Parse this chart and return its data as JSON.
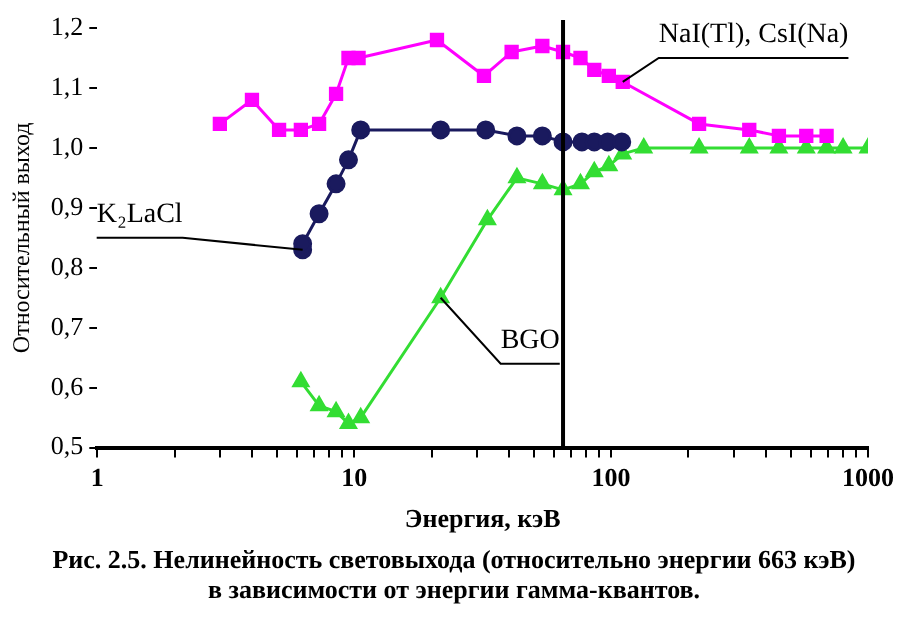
{
  "chart_data": {
    "type": "line",
    "xlabel": "Энергия, кэВ",
    "ylabel": "Относительный выход",
    "annotations": [
      "Рис. 2.5. Нелинейность световыхода (относительно энергии 663 кэВ)\nв зависимости от энергии гамма-квантов."
    ],
    "log": "x",
    "xlim": [
      1,
      1000
    ],
    "ylim": [
      0.5,
      1.2
    ],
    "xticks": [
      1,
      {
        "value": 2,
        "label": null
      },
      {
        "value": 3,
        "label": null
      },
      {
        "value": 4,
        "label": null
      },
      {
        "value": 5,
        "label": null
      },
      {
        "value": 6,
        "label": null
      },
      {
        "value": 7,
        "label": null
      },
      {
        "value": 8,
        "label": null
      },
      {
        "value": 9,
        "label": null
      },
      10,
      {
        "value": 20,
        "label": null
      },
      {
        "value": 30,
        "label": null
      },
      {
        "value": 40,
        "label": null
      },
      {
        "value": 50,
        "label": null
      },
      {
        "value": 60,
        "label": null
      },
      {
        "value": 70,
        "label": null
      },
      {
        "value": 80,
        "label": null
      },
      {
        "value": 90,
        "label": null
      },
      100,
      {
        "value": 200,
        "label": null
      },
      {
        "value": 300,
        "label": null
      },
      {
        "value": 400,
        "label": null
      },
      {
        "value": 500,
        "label": null
      },
      {
        "value": 600,
        "label": null
      },
      {
        "value": 700,
        "label": null
      },
      {
        "value": 800,
        "label": null
      },
      {
        "value": 900,
        "label": null
      },
      1000
    ],
    "yticks": [
      {
        "value": 0.5,
        "label": "0,5"
      },
      {
        "value": 0.6,
        "label": "0,6"
      },
      {
        "value": 0.7,
        "label": "0,7"
      },
      {
        "value": 0.8,
        "label": "0,8"
      },
      {
        "value": 0.9,
        "label": "0,9"
      },
      {
        "value": 1.0,
        "label": "1,0"
      },
      {
        "value": 1.1,
        "label": "1,1"
      },
      {
        "value": 1.2,
        "label": "1,2"
      }
    ],
    "grid": false,
    "legend": false,
    "ref_lines": [
      {
        "axis": "x",
        "value": 65,
        "color": "#000000"
      }
    ],
    "series": [
      {
        "name": "NaI(Tl), CsI(Na)",
        "color": "#ff00ff",
        "marker": "square",
        "x": [
          3,
          4,
          5.1,
          6.2,
          7.3,
          8.5,
          9.5,
          10.4,
          21,
          32,
          41,
          54,
          65,
          76,
          86,
          98,
          111,
          220,
          345,
          450,
          575,
          690
        ],
        "values": [
          1.04,
          1.08,
          1.03,
          1.03,
          1.04,
          1.09,
          1.15,
          1.15,
          1.18,
          1.12,
          1.16,
          1.17,
          1.16,
          1.15,
          1.13,
          1.12,
          1.11,
          1.04,
          1.03,
          1.02,
          1.02,
          1.02
        ]
      },
      {
        "name": "K₂LaCl",
        "color": "#1a1a5e",
        "marker": "circle",
        "x": [
          6.3,
          6.3,
          7.3,
          8.5,
          9.5,
          10.6,
          21.7,
          32.5,
          43,
          54,
          65,
          77,
          86,
          97,
          110
        ],
        "values": [
          0.83,
          0.84,
          0.89,
          0.94,
          0.98,
          1.03,
          1.03,
          1.03,
          1.02,
          1.02,
          1.01,
          1.01,
          1.01,
          1.01,
          1.01
        ]
      },
      {
        "name": "BGO",
        "color": "#33dd33",
        "marker": "triangle",
        "x": [
          6.2,
          7.3,
          8.5,
          9.5,
          10.6,
          21.7,
          33,
          43,
          54,
          65,
          76,
          86,
          98,
          111,
          134,
          220,
          345,
          450,
          575,
          690,
          800,
          1000
        ],
        "values": [
          0.61,
          0.57,
          0.56,
          0.54,
          0.55,
          0.75,
          0.88,
          0.95,
          0.94,
          0.93,
          0.94,
          0.96,
          0.97,
          0.99,
          1.0,
          1.0,
          1.0,
          1.0,
          1.0,
          1.0,
          1.0,
          1.0
        ]
      }
    ]
  }
}
